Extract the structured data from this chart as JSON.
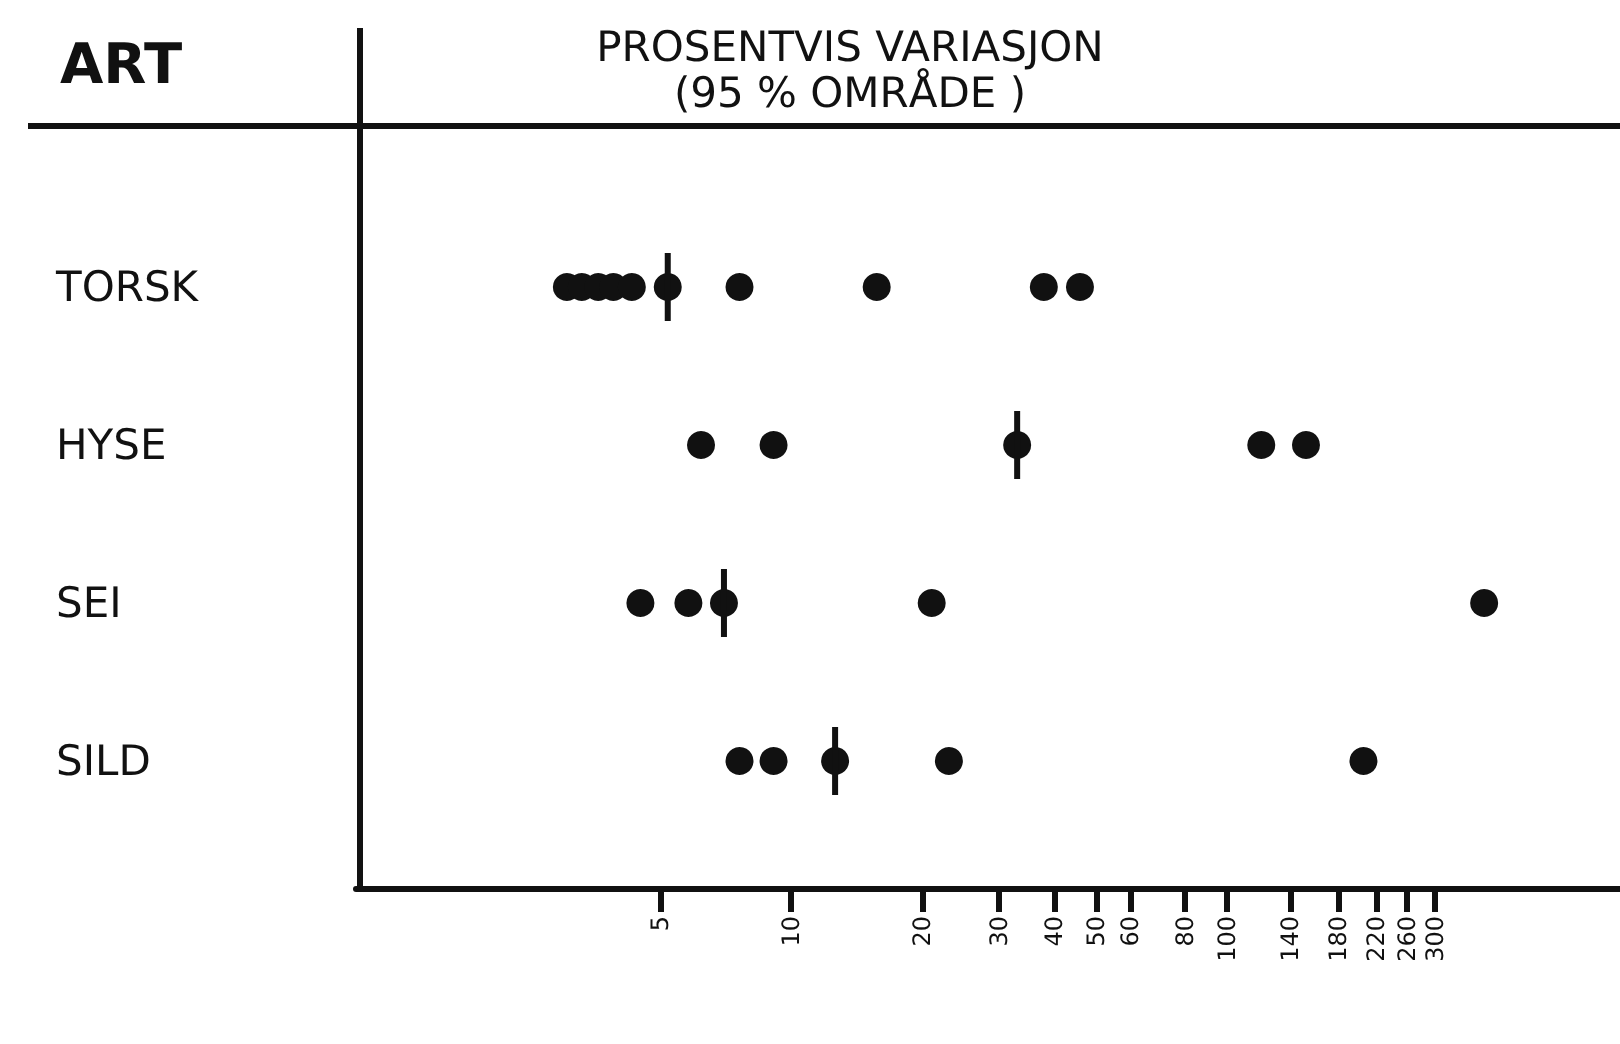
{
  "chart_data": {
    "type": "scatter",
    "title": "PROSENTVIS VARIASJON",
    "subtitle": "(95 % OMRÅDE )",
    "ylabel": "ART",
    "categories": [
      "TORSK",
      "HYSE",
      "SEI",
      "SILD"
    ],
    "orientation": "horizontal",
    "log": "x",
    "xlim": [
      1,
      800
    ],
    "xticks": [
      5,
      10,
      20,
      30,
      40,
      50,
      60,
      80,
      100,
      140,
      180,
      220,
      260,
      300
    ],
    "grid": false,
    "series": [
      {
        "color": "#111111",
        "marker": "circle",
        "x": [
          "TORSK",
          "TORSK",
          "TORSK",
          "TORSK",
          "TORSK",
          "TORSK",
          "TORSK",
          "TORSK",
          "TORSK",
          "HYSE",
          "HYSE",
          "HYSE",
          "HYSE",
          "SEI",
          "SEI",
          "SEI",
          "SEI",
          "SILD",
          "SILD",
          "SILD",
          "SILD"
        ],
        "values": [
          3.05,
          3.3,
          3.6,
          3.9,
          4.3,
          7.6,
          15.7,
          38,
          46,
          6.2,
          9.1,
          120,
          152,
          4.5,
          5.8,
          21,
          390,
          7.6,
          9.1,
          23,
          206
        ]
      },
      {
        "color": "#111111",
        "marker": "circle",
        "x": [
          "TORSK",
          "HYSE",
          "SEI",
          "SILD"
        ],
        "values": [
          5.2,
          33,
          7,
          12.6
        ]
      }
    ]
  }
}
